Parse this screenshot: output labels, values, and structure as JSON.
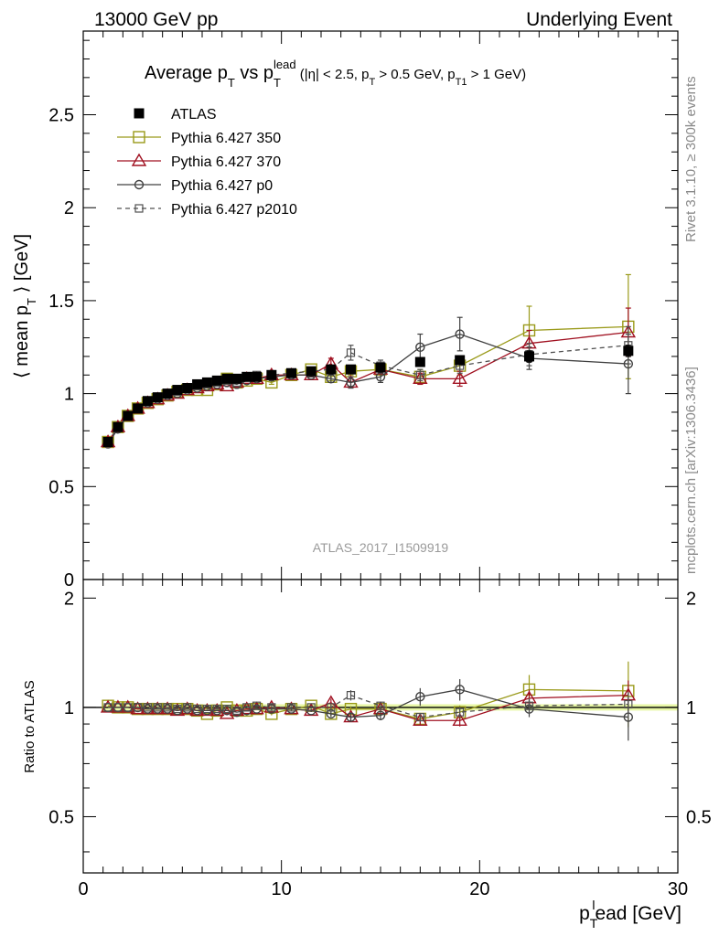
{
  "header": {
    "left": "13000 GeV pp",
    "right": "Underlying Event"
  },
  "side": {
    "rivet": "Rivet 3.1.10, ≥ 300k events",
    "mcplots": "mcplots.cern.ch [arXiv:1306.3436]"
  },
  "chart_data": {
    "type": "scatter",
    "title_main": "Average p",
    "title_sub_T": "T",
    "title_vs": " vs p",
    "title_sup_lead": "lead",
    "title_cuts_a": " (|η| < 2.5, p",
    "title_cuts_b": " > 0.5 GeV, p",
    "title_cuts_T1": "T1",
    "title_cuts_c": " > 1 GeV)",
    "ylabel_a": "⟨ mean p",
    "ylabel_b": " ⟩ [GeV]",
    "ratio_ylabel": "Ratio to ATLAS",
    "xlabel_a": "p",
    "xlabel_sup": "l",
    "xlabel_b": "ead [GeV]",
    "watermark": "ATLAS_2017_I1509919",
    "xlim": [
      0,
      30
    ],
    "ylim": [
      0,
      2.95
    ],
    "ratio_ylim": [
      0.35,
      2.25
    ],
    "x_ticks": [
      "0",
      "10",
      "20",
      "30"
    ],
    "y_ticks": [
      "0.5",
      "1",
      "1.5",
      "2",
      "2.5"
    ],
    "y_tick_values": [
      0.5,
      1,
      1.5,
      2,
      2.5
    ],
    "ratio_ticks": [
      "0.5",
      "1",
      "2"
    ],
    "ratio_tick_values": [
      0.5,
      1,
      2
    ],
    "x": [
      1.25,
      1.75,
      2.25,
      2.75,
      3.25,
      3.75,
      4.25,
      4.75,
      5.25,
      5.75,
      6.25,
      6.75,
      7.25,
      7.75,
      8.25,
      8.75,
      9.5,
      10.5,
      11.5,
      12.5,
      13.5,
      15.0,
      17.0,
      19.0,
      22.5,
      27.5
    ],
    "series": [
      {
        "name": "ATLAS",
        "color": "#000000",
        "marker": "filled-square",
        "values": [
          0.74,
          0.82,
          0.88,
          0.92,
          0.96,
          0.98,
          1.0,
          1.02,
          1.03,
          1.05,
          1.06,
          1.07,
          1.08,
          1.08,
          1.09,
          1.09,
          1.1,
          1.11,
          1.12,
          1.13,
          1.13,
          1.14,
          1.17,
          1.18,
          1.2,
          1.23
        ],
        "ratio": [
          1.0,
          1.0,
          1.0,
          1.0,
          1.0,
          1.0,
          1.0,
          1.0,
          1.0,
          1.0,
          1.0,
          1.0,
          1.0,
          1.0,
          1.0,
          1.0,
          1.0,
          1.0,
          1.0,
          1.0,
          1.0,
          1.0,
          1.0,
          1.0,
          1.0,
          1.0
        ],
        "err": [
          0.01,
          0.01,
          0.01,
          0.01,
          0.01,
          0.01,
          0.01,
          0.01,
          0.01,
          0.01,
          0.01,
          0.01,
          0.01,
          0.01,
          0.01,
          0.01,
          0.01,
          0.01,
          0.01,
          0.01,
          0.02,
          0.02,
          0.02,
          0.02,
          0.03,
          0.03
        ]
      },
      {
        "name": "Pythia 6.427 350",
        "color": "#9a9a1a",
        "marker": "open-square",
        "dashed": false,
        "values": [
          0.74,
          0.82,
          0.88,
          0.92,
          0.95,
          0.97,
          0.99,
          1.01,
          1.02,
          1.02,
          1.02,
          1.05,
          1.08,
          1.06,
          1.07,
          1.08,
          1.06,
          1.1,
          1.13,
          1.09,
          1.12,
          1.13,
          1.09,
          1.15,
          1.34,
          1.36
        ],
        "ratio": [
          1.01,
          1.0,
          1.0,
          0.99,
          0.99,
          0.99,
          0.99,
          0.99,
          0.99,
          0.98,
          0.96,
          0.98,
          1.0,
          0.98,
          0.98,
          0.99,
          0.96,
          0.99,
          1.01,
          0.96,
          0.99,
          0.99,
          0.93,
          0.97,
          1.12,
          1.11
        ],
        "err": [
          0.005,
          0.005,
          0.005,
          0.005,
          0.005,
          0.005,
          0.005,
          0.005,
          0.005,
          0.005,
          0.005,
          0.005,
          0.005,
          0.005,
          0.005,
          0.005,
          0.01,
          0.01,
          0.01,
          0.02,
          0.02,
          0.03,
          0.04,
          0.05,
          0.13,
          0.28
        ]
      },
      {
        "name": "Pythia 6.427 370",
        "color": "#a01020",
        "marker": "open-triangle",
        "dashed": false,
        "values": [
          0.74,
          0.82,
          0.88,
          0.92,
          0.95,
          0.97,
          0.99,
          1.0,
          1.02,
          1.03,
          1.04,
          1.05,
          1.04,
          1.06,
          1.08,
          1.08,
          1.1,
          1.1,
          1.1,
          1.16,
          1.06,
          1.13,
          1.08,
          1.08,
          1.27,
          1.33
        ],
        "ratio": [
          1.0,
          1.0,
          1.0,
          0.99,
          0.99,
          0.99,
          0.99,
          0.98,
          0.99,
          0.98,
          0.98,
          0.98,
          0.96,
          0.98,
          0.99,
          0.99,
          1.0,
          0.99,
          0.98,
          1.03,
          0.94,
          0.99,
          0.92,
          0.92,
          1.06,
          1.08
        ],
        "err": [
          0.005,
          0.005,
          0.005,
          0.005,
          0.005,
          0.005,
          0.005,
          0.005,
          0.005,
          0.005,
          0.005,
          0.005,
          0.005,
          0.005,
          0.005,
          0.005,
          0.01,
          0.01,
          0.01,
          0.03,
          0.03,
          0.02,
          0.03,
          0.04,
          0.07,
          0.13
        ]
      },
      {
        "name": "Pythia 6.427 p0",
        "color": "#404040",
        "marker": "open-circle",
        "dashed": false,
        "values": [
          0.73,
          0.81,
          0.88,
          0.92,
          0.95,
          0.97,
          0.99,
          1.0,
          1.02,
          1.03,
          1.04,
          1.05,
          1.06,
          1.05,
          1.07,
          1.08,
          1.09,
          1.1,
          1.1,
          1.08,
          1.06,
          1.09,
          1.25,
          1.32,
          1.19,
          1.16
        ],
        "ratio": [
          1.0,
          1.0,
          1.0,
          1.0,
          0.99,
          0.99,
          0.99,
          0.98,
          0.99,
          0.98,
          0.98,
          0.98,
          0.98,
          0.97,
          0.98,
          0.99,
          0.99,
          0.99,
          0.98,
          0.96,
          0.94,
          0.95,
          1.07,
          1.12,
          0.99,
          0.94
        ],
        "err": [
          0.005,
          0.005,
          0.005,
          0.005,
          0.005,
          0.005,
          0.005,
          0.005,
          0.005,
          0.005,
          0.005,
          0.005,
          0.005,
          0.005,
          0.005,
          0.005,
          0.01,
          0.01,
          0.01,
          0.02,
          0.03,
          0.03,
          0.07,
          0.09,
          0.06,
          0.16
        ]
      },
      {
        "name": "Pythia 6.427 p2010",
        "color": "#505050",
        "marker": "open-small-square",
        "dashed": true,
        "values": [
          0.74,
          0.82,
          0.88,
          0.92,
          0.96,
          0.98,
          1.0,
          1.01,
          1.03,
          1.04,
          1.05,
          1.06,
          1.07,
          1.06,
          1.09,
          1.1,
          1.1,
          1.11,
          1.12,
          1.13,
          1.22,
          1.15,
          1.1,
          1.15,
          1.21,
          1.26
        ],
        "ratio": [
          1.0,
          1.0,
          1.0,
          1.0,
          1.0,
          1.0,
          1.0,
          0.99,
          1.0,
          0.99,
          0.99,
          0.99,
          0.99,
          0.98,
          1.0,
          1.01,
          1.0,
          1.0,
          1.0,
          1.0,
          1.08,
          1.01,
          0.94,
          0.97,
          1.01,
          1.02
        ],
        "err": [
          0.005,
          0.005,
          0.005,
          0.005,
          0.005,
          0.005,
          0.005,
          0.005,
          0.005,
          0.005,
          0.005,
          0.005,
          0.005,
          0.005,
          0.005,
          0.005,
          0.01,
          0.01,
          0.01,
          0.02,
          0.04,
          0.03,
          0.03,
          0.04,
          0.06,
          0.1
        ]
      }
    ]
  }
}
